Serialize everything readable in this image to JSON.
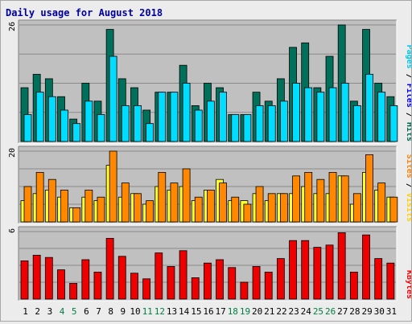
{
  "chart_data": {
    "type": "bar",
    "title": "Daily usage for August 2018",
    "categories": [
      "1",
      "2",
      "3",
      "4",
      "5",
      "6",
      "7",
      "8",
      "9",
      "10",
      "11",
      "12",
      "13",
      "14",
      "15",
      "16",
      "17",
      "18",
      "19",
      "20",
      "21",
      "22",
      "23",
      "24",
      "25",
      "26",
      "27",
      "28",
      "29",
      "30",
      "31"
    ],
    "weekend_days": [
      "4",
      "5",
      "11",
      "12",
      "18",
      "19",
      "25",
      "26"
    ],
    "panels": [
      {
        "id": "pages-files-hits",
        "ymax_label": "26",
        "ylim": [
          0,
          26
        ],
        "legend": [
          {
            "label": "Pages",
            "color": "#00c8ee"
          },
          {
            "label": "Files",
            "color": "#0000ff"
          },
          {
            "label": "Hits",
            "color": "#006a4e"
          }
        ],
        "series": [
          {
            "name": "Hits",
            "color": "#00705a",
            "values": [
              12,
              15,
              14,
              10,
              5,
              13,
              9,
              25,
              14,
              12,
              7,
              11,
              11,
              17,
              8,
              13,
              12,
              6,
              6,
              11,
              9,
              14,
              21,
              22,
              12,
              19,
              26,
              9,
              25,
              13,
              10
            ]
          },
          {
            "name": "Pages",
            "color": "#00ddff",
            "values": [
              6,
              11,
              10,
              7,
              4,
              9,
              6,
              19,
              8,
              8,
              4,
              11,
              11,
              13,
              7,
              9,
              11,
              6,
              6,
              8,
              8,
              9,
              13,
              12,
              11,
              12,
              13,
              8,
              15,
              11,
              8
            ]
          }
        ]
      },
      {
        "id": "sites-visits",
        "ymax_label": "20",
        "ylim": [
          0,
          20
        ],
        "legend": [
          {
            "label": "Sites",
            "color": "#ff8000"
          },
          {
            "label": "Visits",
            "color": "#ffd000"
          }
        ],
        "series": [
          {
            "name": "Visits",
            "color": "#ffff30",
            "values": [
              6,
              8,
              9,
              7,
              4,
              7,
              6,
              16,
              7,
              8,
              5,
              10,
              9,
              10,
              6,
              9,
              12,
              6,
              6,
              8,
              6,
              8,
              8,
              10,
              8,
              8,
              13,
              5,
              14,
              9,
              7
            ]
          },
          {
            "name": "Sites",
            "color": "#ff8800",
            "values": [
              10,
              14,
              12,
              9,
              4,
              9,
              7,
              20,
              11,
              8,
              6,
              14,
              11,
              15,
              7,
              9,
              11,
              7,
              5,
              10,
              8,
              8,
              13,
              14,
              12,
              14,
              13,
              8,
              19,
              11,
              7
            ]
          }
        ]
      },
      {
        "id": "kbytes",
        "ymax_label": "6",
        "ylim": [
          0,
          6
        ],
        "legend": [
          {
            "label": "KBytes",
            "color": "#ff0000"
          }
        ],
        "series": [
          {
            "name": "KBytes",
            "color": "#ee0000",
            "values": [
              3.4,
              3.9,
              3.7,
              2.6,
              1.4,
              3.5,
              2.4,
              5.4,
              3.8,
              2.3,
              1.8,
              4.1,
              2.9,
              4.3,
              1.9,
              3.2,
              3.5,
              2.8,
              1.5,
              2.9,
              2.4,
              3.6,
              5.2,
              5.2,
              4.6,
              4.8,
              5.9,
              2.4,
              5.7,
              3.6,
              3.2
            ]
          }
        ]
      }
    ]
  }
}
